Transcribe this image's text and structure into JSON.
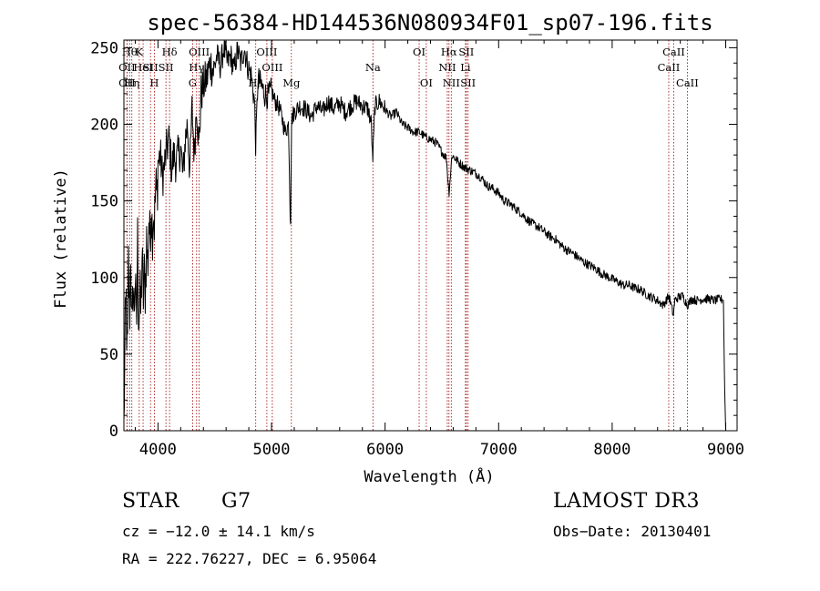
{
  "chart_data": {
    "type": "line",
    "title": "spec-56384-HD144536N080934F01_sp07-196.fits",
    "xlabel": "Wavelength (Å)",
    "ylabel": "Flux (relative)",
    "xlim": [
      3700,
      9100
    ],
    "ylim": [
      0,
      255
    ],
    "xticks": [
      4000,
      5000,
      6000,
      7000,
      8000,
      9000
    ],
    "yticks": [
      0,
      50,
      100,
      150,
      200,
      250
    ],
    "series": [
      {
        "name": "flux",
        "x": [
          3700,
          3710,
          3720,
          3730,
          3740,
          3750,
          3760,
          3770,
          3780,
          3790,
          3800,
          3810,
          3820,
          3830,
          3840,
          3850,
          3860,
          3870,
          3880,
          3890,
          3900,
          3910,
          3920,
          3930,
          3940,
          3950,
          3960,
          3970,
          3980,
          3990,
          4000,
          4020,
          4040,
          4060,
          4080,
          4100,
          4120,
          4140,
          4160,
          4180,
          4200,
          4220,
          4240,
          4260,
          4280,
          4300,
          4320,
          4340,
          4360,
          4380,
          4400,
          4430,
          4460,
          4490,
          4520,
          4550,
          4580,
          4610,
          4640,
          4670,
          4700,
          4730,
          4760,
          4790,
          4820,
          4850,
          4861,
          4880,
          4910,
          4940,
          4970,
          5000,
          5030,
          5060,
          5090,
          5120,
          5150,
          5167,
          5175,
          5183,
          5200,
          5250,
          5300,
          5350,
          5400,
          5450,
          5500,
          5550,
          5600,
          5650,
          5700,
          5750,
          5800,
          5850,
          5880,
          5890,
          5896,
          5910,
          5950,
          6000,
          6050,
          6100,
          6150,
          6200,
          6250,
          6300,
          6350,
          6400,
          6450,
          6500,
          6540,
          6563,
          6590,
          6650,
          6700,
          6750,
          6800,
          6850,
          6900,
          6950,
          7000,
          7050,
          7100,
          7150,
          7200,
          7250,
          7300,
          7350,
          7400,
          7450,
          7500,
          7550,
          7600,
          7650,
          7700,
          7750,
          7800,
          7850,
          7900,
          7950,
          8000,
          8050,
          8100,
          8150,
          8200,
          8250,
          8300,
          8350,
          8400,
          8450,
          8500,
          8540,
          8550,
          8580,
          8620,
          8662,
          8700,
          8750,
          8800,
          8850,
          8900,
          8950,
          8980,
          8990,
          9000
        ],
        "values": [
          0,
          60,
          85,
          40,
          110,
          70,
          120,
          55,
          95,
          80,
          100,
          60,
          125,
          70,
          90,
          75,
          115,
          85,
          100,
          92,
          125,
          105,
          140,
          120,
          150,
          130,
          145,
          135,
          160,
          150,
          175,
          180,
          165,
          175,
          185,
          190,
          170,
          180,
          175,
          180,
          185,
          165,
          190,
          200,
          170,
          210,
          180,
          215,
          185,
          220,
          225,
          230,
          240,
          235,
          245,
          238,
          250,
          240,
          245,
          235,
          248,
          240,
          250,
          238,
          232,
          215,
          185,
          230,
          225,
          220,
          218,
          222,
          215,
          212,
          205,
          195,
          200,
          130,
          200,
          205,
          208,
          212,
          210,
          205,
          212,
          208,
          215,
          210,
          214,
          208,
          212,
          215,
          212,
          210,
          200,
          175,
          185,
          212,
          215,
          210,
          205,
          208,
          200,
          198,
          195,
          195,
          192,
          190,
          188,
          182,
          178,
          155,
          180,
          175,
          172,
          170,
          168,
          165,
          160,
          158,
          155,
          150,
          148,
          145,
          142,
          138,
          135,
          133,
          130,
          127,
          125,
          121,
          118,
          116,
          113,
          110,
          108,
          106,
          103,
          101,
          99,
          97,
          95,
          95,
          93,
          92,
          89,
          87,
          85,
          82,
          88,
          75,
          85,
          87,
          88,
          82,
          86,
          85,
          86,
          86,
          85,
          86,
          85,
          30,
          0
        ]
      }
    ],
    "lines": [
      {
        "x": 3750,
        "label": "Hθ",
        "row": 0
      },
      {
        "x": 3727,
        "label": "OII",
        "row": 1
      },
      {
        "x": 3727,
        "label": "OII",
        "row": 2
      },
      {
        "x": 3770,
        "label": "Hη",
        "row": 2
      },
      {
        "x": 3835,
        "label": "K",
        "row": 0
      },
      {
        "x": 3869,
        "label": "HeI",
        "row": 1
      },
      {
        "x": 3934,
        "label": "SII",
        "row": 1
      },
      {
        "x": 3968,
        "label": "H",
        "row": 2
      },
      {
        "x": 4102,
        "label": "Hδ",
        "row": 0
      },
      {
        "x": 4070,
        "label": "SII",
        "row": 1
      },
      {
        "x": 4340,
        "label": "Hγ",
        "row": 1
      },
      {
        "x": 4305,
        "label": "G",
        "row": 2
      },
      {
        "x": 4363,
        "label": "OIII",
        "row": 0
      },
      {
        "x": 4861,
        "label": "Hβ",
        "row": 2
      },
      {
        "x": 4959,
        "label": "OIII",
        "row": 0
      },
      {
        "x": 5007,
        "label": "OIII",
        "row": 1
      },
      {
        "x": 5175,
        "label": "Mg",
        "row": 2
      },
      {
        "x": 5893,
        "label": "Na",
        "row": 1
      },
      {
        "x": 6300,
        "label": "OI",
        "row": 0
      },
      {
        "x": 6363,
        "label": "OI",
        "row": 2
      },
      {
        "x": 6563,
        "label": "Hα",
        "row": 0
      },
      {
        "x": 6548,
        "label": "NII",
        "row": 1
      },
      {
        "x": 6583,
        "label": "NII",
        "row": 2
      },
      {
        "x": 6716,
        "label": "SII",
        "row": 0
      },
      {
        "x": 6708,
        "label": "Li",
        "row": 1
      },
      {
        "x": 6731,
        "label": "SII",
        "row": 2
      },
      {
        "x": 8542,
        "label": "CaII",
        "row": 0
      },
      {
        "x": 8498,
        "label": "CaII",
        "row": 1
      },
      {
        "x": 8662,
        "label": "CaII",
        "row": 2
      }
    ]
  },
  "info": {
    "classification": "STAR",
    "subclass": "G7",
    "survey": "LAMOST DR3",
    "redshift": "cz = −12.0 ± 14.1 km/s",
    "obs_date": "Obs−Date: 20130401",
    "coords": "RA = 222.76227, DEC =   6.95064"
  },
  "colors": {
    "line_marker": "#a00000",
    "spectrum": "#000000",
    "frame": "#000000"
  }
}
